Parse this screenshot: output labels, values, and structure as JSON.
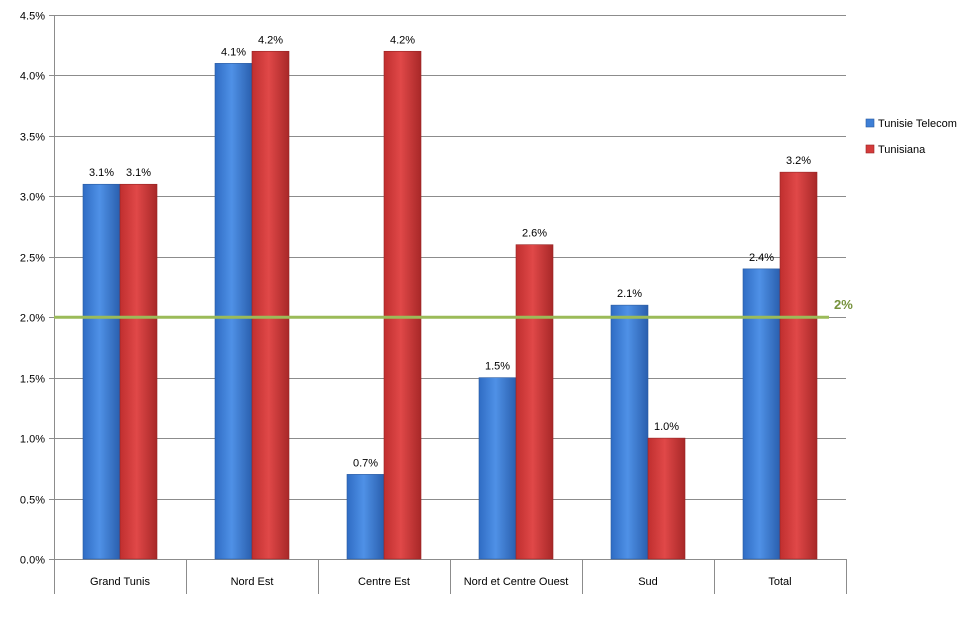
{
  "chart_data": {
    "type": "bar",
    "categories": [
      "Grand Tunis",
      "Nord Est",
      "Centre Est",
      "Nord et Centre Ouest",
      "Sud",
      "Total"
    ],
    "series": [
      {
        "name": "Tunisie Telecom",
        "values": [
          3.1,
          4.1,
          0.7,
          1.5,
          2.1,
          2.4
        ],
        "labels": [
          "3.1%",
          "4.1%",
          "0.7%",
          "1.5%",
          "2.1%",
          "2.4%"
        ],
        "color": "#3e7fd6"
      },
      {
        "name": "Tunisiana",
        "values": [
          3.1,
          4.2,
          4.2,
          2.6,
          1.0,
          3.2
        ],
        "labels": [
          "3.1%",
          "4.2%",
          "4.2%",
          "2.6%",
          "1.0%",
          "3.2%"
        ],
        "color": "#d43b3b"
      }
    ],
    "y_ticks": [
      0,
      0.5,
      1.0,
      1.5,
      2.0,
      2.5,
      3.0,
      3.5,
      4.0,
      4.5
    ],
    "y_tick_labels": [
      "0.0%",
      "0.5%",
      "1.0%",
      "1.5%",
      "2.0%",
      "2.5%",
      "3.0%",
      "3.5%",
      "4.0%",
      "4.5%"
    ],
    "ylim": [
      0,
      4.5
    ],
    "reference_line": {
      "value": 2.0,
      "label": "2%",
      "color": "#9bbb59"
    },
    "grid": true,
    "legend_position": "right",
    "title": "",
    "xlabel": "",
    "ylabel": ""
  }
}
